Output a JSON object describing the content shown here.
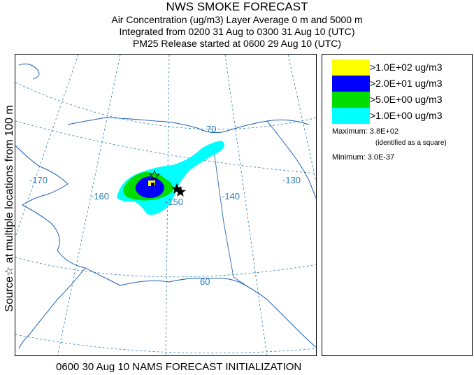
{
  "title": {
    "line1": "NWS SMOKE FORECAST",
    "line2": "Air Concentration (ug/m3) Layer Average    0 m and  5000 m",
    "line3": "Integrated from 0200 31 Aug to 0300 31 Aug 10 (UTC)",
    "line4": "PM25 Release started at 0600 29 Aug 10 (UTC)"
  },
  "side_label": "Source☆     at multiple locations     from     100 m",
  "bottom_label": "0600 30 Aug 10 NAMS FORECAST INITIALIZATION",
  "map": {
    "graticule_labels": [
      "-170",
      "-160",
      "-150",
      "-140",
      "-130",
      "70",
      "60"
    ],
    "colors": {
      "coast": "#1a5fb4",
      "grid": "#2c7fb8",
      "label": "#2c7fb8",
      "border": "#3a78b8"
    }
  },
  "legend": {
    "levels": [
      {
        "label": ">1.0E+02 ug/m3",
        "color": "#ffff00"
      },
      {
        "label": ">2.0E+01 ug/m3",
        "color": "#0000ff"
      },
      {
        "label": ">5.0E+00 ug/m3",
        "color": "#00dd00"
      },
      {
        "label": ">1.0E+00 ug/m3",
        "color": "#00ffff"
      }
    ],
    "maximum": "Maximum: 3.8E+02",
    "maximum_note": "(identified as a square)",
    "minimum": "Minimum: 3.0E-37"
  }
}
